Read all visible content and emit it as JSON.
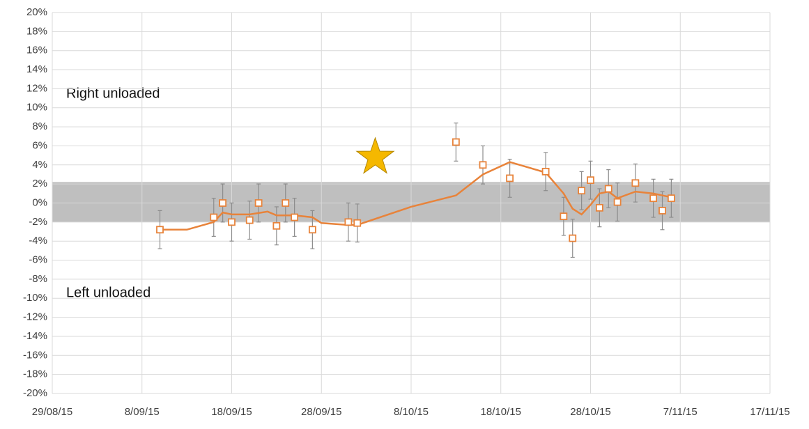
{
  "chart_data": {
    "type": "scatter",
    "xlim": [
      "2015-08-29",
      "2015-11-17"
    ],
    "xticks": [
      {
        "value": "2015-08-29",
        "label": "29/08/15"
      },
      {
        "value": "2015-09-08",
        "label": "8/09/15"
      },
      {
        "value": "2015-09-18",
        "label": "18/09/15"
      },
      {
        "value": "2015-09-28",
        "label": "28/09/15"
      },
      {
        "value": "2015-10-08",
        "label": "8/10/15"
      },
      {
        "value": "2015-10-18",
        "label": "18/10/15"
      },
      {
        "value": "2015-10-28",
        "label": "28/10/15"
      },
      {
        "value": "2015-11-07",
        "label": "7/11/15"
      },
      {
        "value": "2015-11-17",
        "label": "17/11/15"
      }
    ],
    "ylim": [
      -20,
      20
    ],
    "yticks": [
      {
        "value": -20,
        "label": "-20%"
      },
      {
        "value": -18,
        "label": "-18%"
      },
      {
        "value": -16,
        "label": "-16%"
      },
      {
        "value": -14,
        "label": "-14%"
      },
      {
        "value": -12,
        "label": "-12%"
      },
      {
        "value": -10,
        "label": "-10%"
      },
      {
        "value": -8,
        "label": "-8%"
      },
      {
        "value": -6,
        "label": "-6%"
      },
      {
        "value": -4,
        "label": "-4%"
      },
      {
        "value": -2,
        "label": "-2%"
      },
      {
        "value": 0,
        "label": "0%"
      },
      {
        "value": 2,
        "label": "2%"
      },
      {
        "value": 4,
        "label": "4%"
      },
      {
        "value": 6,
        "label": "6%"
      },
      {
        "value": 8,
        "label": "8%"
      },
      {
        "value": 10,
        "label": "10%"
      },
      {
        "value": 12,
        "label": "12%"
      },
      {
        "value": 14,
        "label": "14%"
      },
      {
        "value": 16,
        "label": "16%"
      },
      {
        "value": 18,
        "label": "18%"
      },
      {
        "value": 20,
        "label": "20%"
      }
    ],
    "grid": true,
    "band": [
      -2,
      2.2
    ],
    "band_color": "#bfbfbf",
    "annotations": [
      "Right unloaded",
      "Left unloaded"
    ],
    "star": {
      "x": "2015-10-04",
      "y": 4.8,
      "color": "#f5b800"
    },
    "series": [
      {
        "color": "#e8833a",
        "x": [
          "2015-09-10",
          "2015-09-16",
          "2015-09-17",
          "2015-09-18",
          "2015-09-20",
          "2015-09-21",
          "2015-09-23",
          "2015-09-24",
          "2015-09-25",
          "2015-09-27",
          "2015-10-01",
          "2015-10-02",
          "2015-10-13",
          "2015-10-16",
          "2015-10-19",
          "2015-10-23",
          "2015-10-25",
          "2015-10-26",
          "2015-10-27",
          "2015-10-28",
          "2015-10-29",
          "2015-10-30",
          "2015-10-31",
          "2015-11-02",
          "2015-11-04",
          "2015-11-05",
          "2015-11-06"
        ],
        "values": [
          -2.8,
          -1.5,
          0,
          -2.0,
          -1.8,
          0,
          -2.4,
          0,
          -1.5,
          -2.8,
          -2.0,
          -2.1,
          6.4,
          4.0,
          2.6,
          3.3,
          -1.4,
          -3.7,
          1.3,
          2.4,
          -0.5,
          1.5,
          0.1,
          2.1,
          0.5,
          -0.8,
          0.5
        ],
        "errors": [
          2,
          2,
          2,
          2,
          2,
          2,
          2,
          2,
          2,
          2,
          2,
          2,
          2,
          2,
          2,
          2,
          2,
          2,
          2,
          2,
          2,
          2,
          2,
          2,
          2,
          2,
          2
        ]
      },
      {
        "color": "#e8833a",
        "line": true,
        "x": [
          "2015-09-10",
          "2015-09-13",
          "2015-09-16",
          "2015-09-17",
          "2015-09-18",
          "2015-09-20",
          "2015-09-22",
          "2015-09-23",
          "2015-09-25",
          "2015-09-27",
          "2015-09-28",
          "2015-10-01",
          "2015-10-02",
          "2015-10-08",
          "2015-10-13",
          "2015-10-16",
          "2015-10-19",
          "2015-10-23",
          "2015-10-25",
          "2015-10-26",
          "2015-10-27",
          "2015-10-28",
          "2015-10-29",
          "2015-10-30",
          "2015-10-31",
          "2015-11-02",
          "2015-11-04",
          "2015-11-06"
        ],
        "values": [
          -2.8,
          -2.8,
          -2.0,
          -1.0,
          -1.2,
          -1.2,
          -0.9,
          -1.3,
          -1.3,
          -1.5,
          -2.1,
          -2.3,
          -2.3,
          -0.4,
          0.8,
          3.0,
          4.3,
          3.2,
          1.0,
          -0.6,
          -1.2,
          -0.2,
          1.0,
          1.2,
          0.5,
          1.2,
          1.0,
          0.6
        ]
      }
    ]
  }
}
